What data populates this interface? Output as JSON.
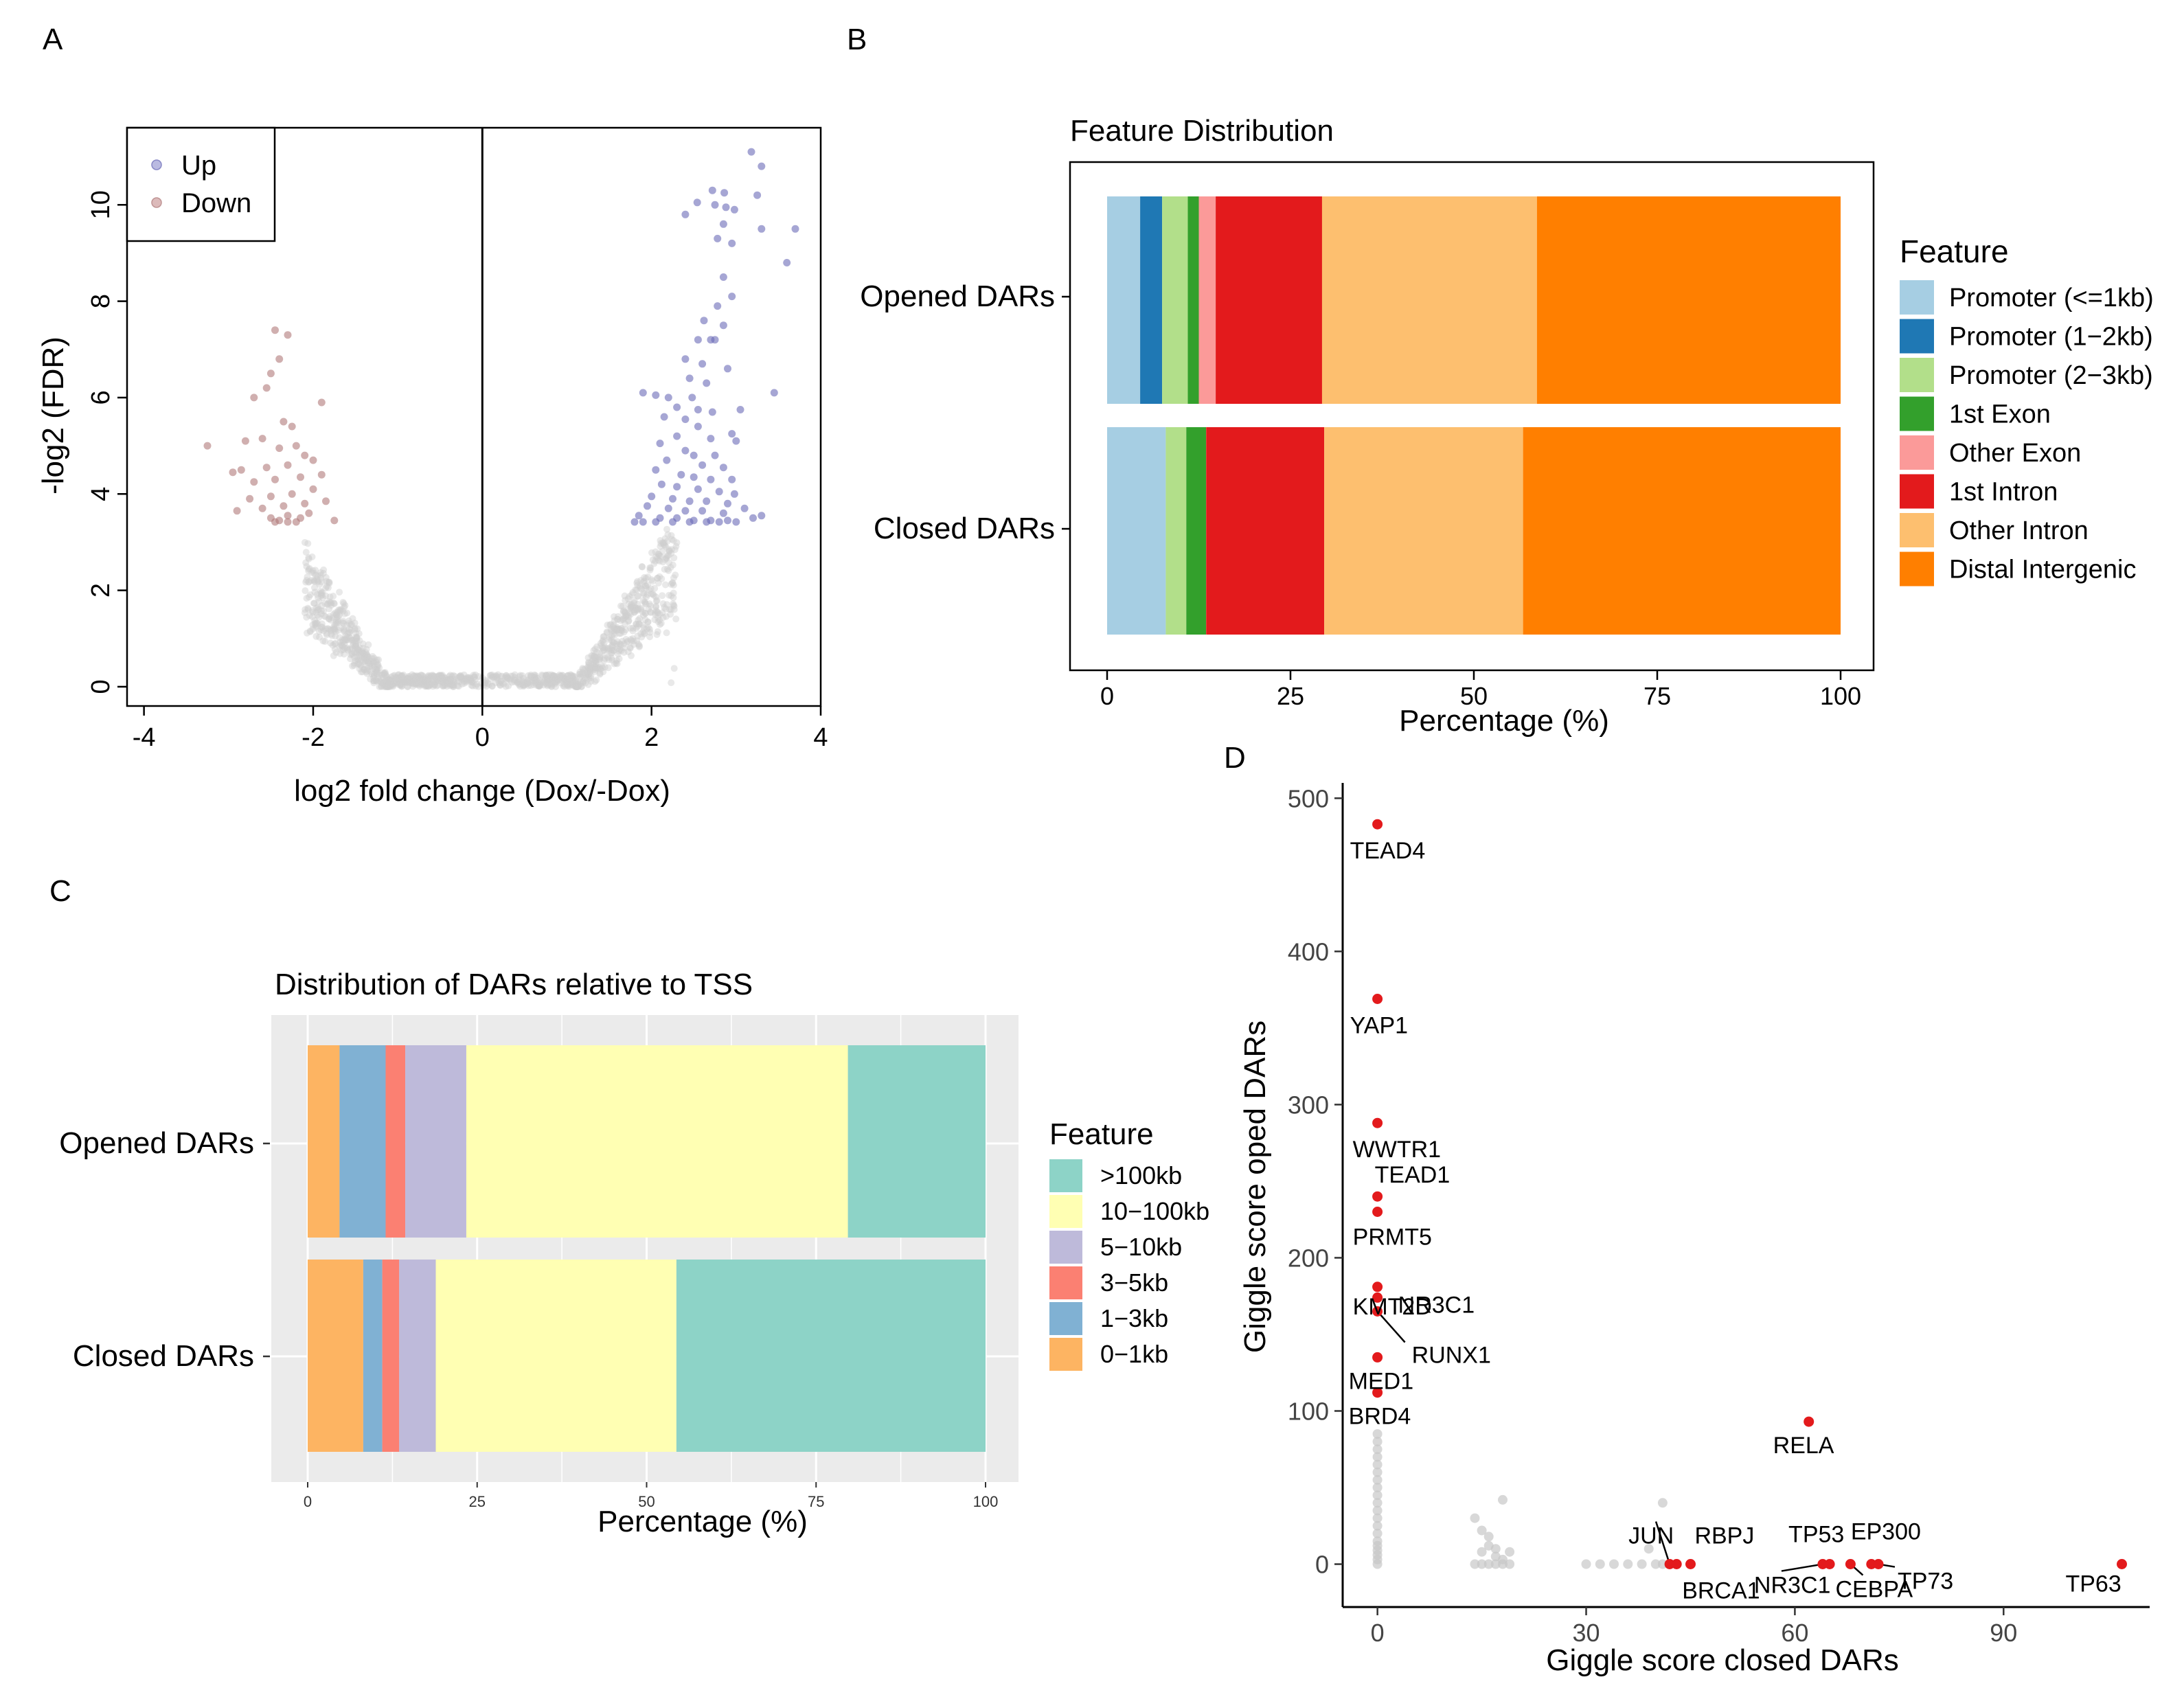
{
  "colors": {
    "up_point": "#6b6bb8",
    "down_point": "#b07a7a",
    "ns_point": "#cfcfcf",
    "feature": {
      "promoter_1kb": "#a6cee3",
      "promoter_2kb": "#1f78b4",
      "promoter_3kb": "#b2df8a",
      "first_exon": "#33a02c",
      "other_exon": "#fb9a99",
      "first_intron": "#e31a1c",
      "other_intron": "#fdbf6f",
      "distal": "#ff7f00"
    },
    "tss": {
      "gt100": "#8dd3c7",
      "10_100": "#ffffb3",
      "5_10": "#bebada",
      "3_5": "#fb8072",
      "1_3": "#80b1d3",
      "0_1": "#fdb462"
    },
    "giggle_hi": "#e31a1c",
    "giggle_lo": "#c8c8c8",
    "panel_bg": "#ebebeb"
  },
  "chart_data": [
    {
      "id": "A",
      "panel_label": "A",
      "type": "scatter",
      "title": "",
      "xlabel": "log2 fold change (Dox/-Dox)",
      "ylabel": "-log2 (FDR)",
      "xlim": [
        -4.2,
        4.0
      ],
      "ylim": [
        -0.4,
        11.6
      ],
      "xticks": [
        -4,
        -2,
        0,
        2,
        4
      ],
      "xtick_labels": [
        "-4",
        "-2",
        "0",
        "2",
        "4"
      ],
      "yticks": [
        0,
        2,
        4,
        6,
        8,
        10
      ],
      "ytick_labels": [
        "0",
        "2",
        "4",
        "6",
        "8",
        "10"
      ],
      "vline": 0,
      "legend": {
        "position": "top-left",
        "items": [
          "Up",
          "Down"
        ]
      },
      "series": [
        {
          "name": "Up",
          "points": [
            [
              3.18,
              11.1
            ],
            [
              3.3,
              10.8
            ],
            [
              2.72,
              10.3
            ],
            [
              2.86,
              10.25
            ],
            [
              3.25,
              10.2
            ],
            [
              2.54,
              10.05
            ],
            [
              2.75,
              10.0
            ],
            [
              2.88,
              9.95
            ],
            [
              2.98,
              9.9
            ],
            [
              2.4,
              9.8
            ],
            [
              2.85,
              9.6
            ],
            [
              3.3,
              9.5
            ],
            [
              3.7,
              9.5
            ],
            [
              2.78,
              9.3
            ],
            [
              2.95,
              9.2
            ],
            [
              3.6,
              8.8
            ],
            [
              2.85,
              8.5
            ],
            [
              2.95,
              8.1
            ],
            [
              2.78,
              7.9
            ],
            [
              2.62,
              7.6
            ],
            [
              2.85,
              7.5
            ],
            [
              2.55,
              7.2
            ],
            [
              2.7,
              7.2
            ],
            [
              2.75,
              7.2
            ],
            [
              2.4,
              6.8
            ],
            [
              2.6,
              6.7
            ],
            [
              2.9,
              6.6
            ],
            [
              2.45,
              6.4
            ],
            [
              2.65,
              6.3
            ],
            [
              3.45,
              6.1
            ],
            [
              1.9,
              6.1
            ],
            [
              2.05,
              6.05
            ],
            [
              2.2,
              6.0
            ],
            [
              2.48,
              6.0
            ],
            [
              2.3,
              5.8
            ],
            [
              2.55,
              5.75
            ],
            [
              2.72,
              5.7
            ],
            [
              3.05,
              5.75
            ],
            [
              2.15,
              5.6
            ],
            [
              2.4,
              5.55
            ],
            [
              2.55,
              5.4
            ],
            [
              2.3,
              5.2
            ],
            [
              2.7,
              5.15
            ],
            [
              2.95,
              5.25
            ],
            [
              3.0,
              5.1
            ],
            [
              2.1,
              5.05
            ],
            [
              2.4,
              4.9
            ],
            [
              2.5,
              4.8
            ],
            [
              2.75,
              4.8
            ],
            [
              2.18,
              4.7
            ],
            [
              2.6,
              4.6
            ],
            [
              2.85,
              4.55
            ],
            [
              2.05,
              4.5
            ],
            [
              2.35,
              4.4
            ],
            [
              2.5,
              4.35
            ],
            [
              2.7,
              4.3
            ],
            [
              2.95,
              4.3
            ],
            [
              2.12,
              4.2
            ],
            [
              2.3,
              4.15
            ],
            [
              2.55,
              4.1
            ],
            [
              2.8,
              4.05
            ],
            [
              2.98,
              4.0
            ],
            [
              2.0,
              3.95
            ],
            [
              2.25,
              3.9
            ],
            [
              2.45,
              3.85
            ],
            [
              2.65,
              3.85
            ],
            [
              2.9,
              3.8
            ],
            [
              1.95,
              3.75
            ],
            [
              2.2,
              3.7
            ],
            [
              2.4,
              3.65
            ],
            [
              2.6,
              3.65
            ],
            [
              2.85,
              3.6
            ],
            [
              3.1,
              3.7
            ],
            [
              1.85,
              3.55
            ],
            [
              2.1,
              3.5
            ],
            [
              2.3,
              3.5
            ],
            [
              2.5,
              3.45
            ],
            [
              2.7,
              3.45
            ],
            [
              2.9,
              3.45
            ],
            [
              1.8,
              3.42
            ],
            [
              2.05,
              3.42
            ],
            [
              2.25,
              3.42
            ],
            [
              2.45,
              3.42
            ],
            [
              2.65,
              3.42
            ],
            [
              2.8,
              3.42
            ],
            [
              3.0,
              3.42
            ],
            [
              3.2,
              3.5
            ],
            [
              3.3,
              3.55
            ],
            [
              1.9,
              3.42
            ]
          ]
        },
        {
          "name": "Down",
          "points": [
            [
              -2.45,
              7.4
            ],
            [
              -2.3,
              7.3
            ],
            [
              -2.4,
              6.8
            ],
            [
              -2.5,
              6.5
            ],
            [
              -2.55,
              6.2
            ],
            [
              -2.7,
              6.0
            ],
            [
              -1.9,
              5.9
            ],
            [
              -2.35,
              5.5
            ],
            [
              -2.25,
              5.4
            ],
            [
              -2.8,
              5.1
            ],
            [
              -2.6,
              5.15
            ],
            [
              -3.25,
              5.0
            ],
            [
              -2.2,
              5.0
            ],
            [
              -2.4,
              4.95
            ],
            [
              -2.1,
              4.8
            ],
            [
              -2.0,
              4.7
            ],
            [
              -2.3,
              4.6
            ],
            [
              -2.55,
              4.55
            ],
            [
              -2.85,
              4.5
            ],
            [
              -2.95,
              4.45
            ],
            [
              -1.9,
              4.4
            ],
            [
              -2.15,
              4.35
            ],
            [
              -2.45,
              4.3
            ],
            [
              -2.7,
              4.25
            ],
            [
              -2.0,
              4.1
            ],
            [
              -2.25,
              4.0
            ],
            [
              -2.5,
              3.95
            ],
            [
              -2.75,
              3.9
            ],
            [
              -1.85,
              3.85
            ],
            [
              -2.1,
              3.8
            ],
            [
              -2.35,
              3.75
            ],
            [
              -2.6,
              3.7
            ],
            [
              -2.9,
              3.65
            ],
            [
              -2.05,
              3.6
            ],
            [
              -2.3,
              3.55
            ],
            [
              -2.5,
              3.5
            ],
            [
              -2.4,
              3.45
            ],
            [
              -2.45,
              3.42
            ],
            [
              -2.3,
              3.42
            ],
            [
              -2.2,
              3.42
            ],
            [
              -1.75,
              3.45
            ],
            [
              -2.15,
              3.5
            ]
          ]
        }
      ]
    },
    {
      "id": "B",
      "panel_label": "B",
      "type": "bar",
      "orientation": "horizontal-stacked",
      "title": "Feature Distribution",
      "xlabel": "Percentage (%)",
      "ylabel": "",
      "xlim": [
        0,
        100
      ],
      "xticks": [
        0,
        25,
        50,
        75,
        100
      ],
      "xtick_labels": [
        "0",
        "25",
        "50",
        "75",
        "100"
      ],
      "categories": [
        "Opened DARs",
        "Closed DARs"
      ],
      "legend": {
        "position": "right",
        "title": "Feature"
      },
      "series": [
        {
          "name": "Promoter (<=1kb)",
          "color_key": "promoter_1kb",
          "values": [
            4.5,
            8.0
          ]
        },
        {
          "name": "Promoter (1−2kb)",
          "color_key": "promoter_2kb",
          "values": [
            3.0,
            0.0
          ]
        },
        {
          "name": "Promoter (2−3kb)",
          "color_key": "promoter_3kb",
          "values": [
            3.5,
            2.8
          ]
        },
        {
          "name": "1st Exon",
          "color_key": "first_exon",
          "values": [
            1.5,
            2.7
          ]
        },
        {
          "name": "Other Exon",
          "color_key": "other_exon",
          "values": [
            2.3,
            0.0
          ]
        },
        {
          "name": "1st Intron",
          "color_key": "first_intron",
          "values": [
            14.5,
            16.1
          ]
        },
        {
          "name": "Other Intron",
          "color_key": "other_intron",
          "values": [
            29.3,
            27.1
          ]
        },
        {
          "name": "Distal Intergenic",
          "color_key": "distal",
          "values": [
            41.4,
            43.3
          ]
        }
      ]
    },
    {
      "id": "C",
      "panel_label": "C",
      "type": "bar",
      "orientation": "horizontal-stacked",
      "title": "Distribution of DARs relative to TSS",
      "xlabel": "Percentage (%)",
      "ylabel": "",
      "xlim": [
        0,
        100
      ],
      "xticks": [
        0,
        25,
        50,
        75,
        100
      ],
      "xtick_labels": [
        "0",
        "25",
        "50",
        "75",
        "100"
      ],
      "categories": [
        "Opened DARs",
        "Closed DARs"
      ],
      "legend": {
        "position": "right",
        "title": "Feature"
      },
      "series": [
        {
          "name": "0−1kb",
          "color_key": "0_1",
          "values": [
            4.7,
            8.2
          ]
        },
        {
          "name": "1−3kb",
          "color_key": "1_3",
          "values": [
            6.8,
            2.8
          ]
        },
        {
          "name": "3−5kb",
          "color_key": "3_5",
          "values": [
            2.9,
            2.5
          ]
        },
        {
          "name": "5−10kb",
          "color_key": "5_10",
          "values": [
            9.0,
            5.4
          ]
        },
        {
          "name": "10−100kb",
          "color_key": "10_100",
          "values": [
            56.3,
            35.5
          ]
        },
        {
          "name": ">100kb",
          "color_key": "gt100",
          "values": [
            20.3,
            45.6
          ]
        }
      ],
      "legend_order": [
        ">100kb",
        "10−100kb",
        "5−10kb",
        "3−5kb",
        "1−3kb",
        "0−1kb"
      ]
    },
    {
      "id": "D",
      "panel_label": "D",
      "type": "scatter",
      "title": "",
      "xlabel": "Giggle score closed DARs",
      "ylabel": "Giggle score oped DARs",
      "xlim": [
        -5,
        111
      ],
      "ylim": [
        -28,
        510
      ],
      "xticks": [
        0,
        30,
        60,
        90
      ],
      "xtick_labels": [
        "0",
        "30",
        "60",
        "90"
      ],
      "yticks": [
        0,
        100,
        200,
        300,
        400,
        500
      ],
      "ytick_labels": [
        "0",
        "100",
        "200",
        "300",
        "400",
        "500"
      ],
      "labeled_points": [
        {
          "label": "TEAD4",
          "x": 0,
          "y": 483
        },
        {
          "label": "YAP1",
          "x": 0,
          "y": 369
        },
        {
          "label": "WWTR1",
          "x": 0,
          "y": 288
        },
        {
          "label": "TEAD1",
          "x": 0,
          "y": 240
        },
        {
          "label": "PRMT5",
          "x": 0,
          "y": 230
        },
        {
          "label": "KMT2D",
          "x": 0,
          "y": 181
        },
        {
          "label": "NR3C1",
          "x": 0,
          "y": 174
        },
        {
          "label": "RUNX1",
          "x": 0,
          "y": 165
        },
        {
          "label": "MED1",
          "x": 0,
          "y": 135
        },
        {
          "label": "BRD4",
          "x": 0,
          "y": 112
        },
        {
          "label": "RELA",
          "x": 62,
          "y": 93
        },
        {
          "label": "JUN",
          "x": 42,
          "y": 0
        },
        {
          "label": "BRCA1",
          "x": 43,
          "y": 0
        },
        {
          "label": "RBPJ",
          "x": 45,
          "y": 0
        },
        {
          "label": "NR3C1",
          "x": 64,
          "y": 0
        },
        {
          "label": "TP53",
          "x": 65,
          "y": 0
        },
        {
          "label": "CEBPA",
          "x": 68,
          "y": 0
        },
        {
          "label": "EP300",
          "x": 71,
          "y": 0
        },
        {
          "label": "TP73",
          "x": 72,
          "y": 0
        },
        {
          "label": "TP63",
          "x": 107,
          "y": 0
        }
      ],
      "background_points": [
        [
          0,
          85
        ],
        [
          0,
          80
        ],
        [
          0,
          75
        ],
        [
          0,
          70
        ],
        [
          0,
          65
        ],
        [
          0,
          60
        ],
        [
          0,
          55
        ],
        [
          0,
          50
        ],
        [
          0,
          45
        ],
        [
          0,
          40
        ],
        [
          0,
          35
        ],
        [
          0,
          30
        ],
        [
          0,
          25
        ],
        [
          0,
          20
        ],
        [
          0,
          15
        ],
        [
          0,
          12
        ],
        [
          0,
          9
        ],
        [
          0,
          6
        ],
        [
          0,
          3
        ],
        [
          0,
          0
        ],
        [
          14,
          30
        ],
        [
          15,
          22
        ],
        [
          16,
          18
        ],
        [
          17,
          10
        ],
        [
          18,
          42
        ],
        [
          14,
          0
        ],
        [
          15,
          0
        ],
        [
          16,
          0
        ],
        [
          17,
          0
        ],
        [
          18,
          0
        ],
        [
          19,
          0
        ],
        [
          15,
          8
        ],
        [
          16,
          12
        ],
        [
          17,
          5
        ],
        [
          18,
          3
        ],
        [
          19,
          8
        ],
        [
          30,
          0
        ],
        [
          32,
          0
        ],
        [
          34,
          0
        ],
        [
          36,
          0
        ],
        [
          38,
          0
        ],
        [
          40,
          0
        ],
        [
          41,
          40
        ],
        [
          39,
          10
        ],
        [
          41,
          0
        ]
      ]
    }
  ]
}
